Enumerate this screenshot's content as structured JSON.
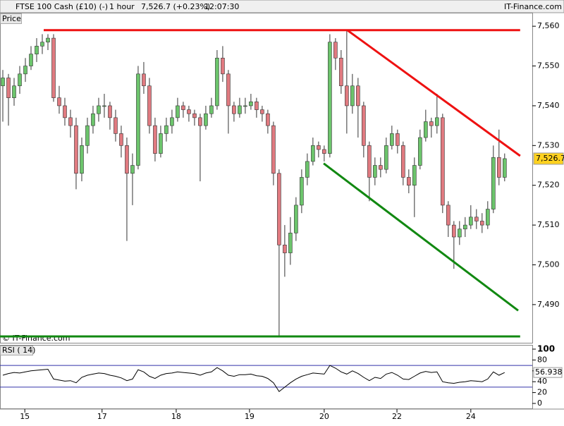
{
  "header": {
    "title": "FTSE 100 Cash (£10) (-)",
    "interval": "1 hour",
    "quote": "7,526.7 (+0.23%)",
    "time": "12:07:30",
    "brand": "IT-Finance.com"
  },
  "chart_data": [
    {
      "type": "candlestick",
      "panel_label": "Price",
      "watermark": "© IT-Finance.com",
      "xlim": [
        -0.5,
        93.9
      ],
      "ylim": [
        7480.4,
        7563.4
      ],
      "yticks": [
        {
          "value": 7490,
          "label": "7,490"
        },
        {
          "value": 7500,
          "label": "7,500"
        },
        {
          "value": 7510,
          "label": "7,510"
        },
        {
          "value": 7520,
          "label": "7,520"
        },
        {
          "value": 7530,
          "label": "7,530"
        },
        {
          "value": 7540,
          "label": "7,540"
        },
        {
          "value": 7550,
          "label": "7,550"
        },
        {
          "value": 7560,
          "label": "7,560"
        }
      ],
      "xticks": [
        {
          "value": 3.9,
          "label": "15"
        },
        {
          "value": 17.6,
          "label": "17"
        },
        {
          "value": 30.75,
          "label": "18"
        },
        {
          "value": 43.75,
          "label": "19"
        },
        {
          "value": 57,
          "label": "20"
        },
        {
          "value": 69.9,
          "label": "22"
        },
        {
          "value": 83,
          "label": "24"
        }
      ],
      "up_color": "#6cc46c",
      "down_color": "#e07a80",
      "wick_color": "#333333",
      "open": [
        7545,
        7547,
        7542,
        7545,
        7548,
        7550,
        7553,
        7555,
        7556,
        7557,
        7542,
        7540,
        7537,
        7535,
        7523,
        7530,
        7535,
        7538,
        7540,
        7540,
        7537,
        7533,
        7530,
        7523,
        7525,
        7548,
        7545,
        7535,
        7528,
        7533,
        7535,
        7537,
        7540,
        7539,
        7538,
        7537,
        7535,
        7538,
        7540,
        7552,
        7548,
        7540,
        7538,
        7540,
        7540,
        7541,
        7539,
        7538,
        7535,
        7523,
        7505,
        7503,
        7508,
        7515,
        7522,
        7526,
        7530,
        7529,
        7528,
        7556,
        7552,
        7545,
        7540,
        7545,
        7540,
        7530,
        7522,
        7525,
        7524,
        7530,
        7533,
        7530,
        7522,
        7520,
        7525,
        7532,
        7536,
        7535,
        7537,
        7515,
        7510,
        7507,
        7509,
        7510,
        7512,
        7511,
        7510,
        7514,
        7527,
        7522
      ],
      "high": [
        7549,
        7548,
        7547,
        7550,
        7552,
        7555,
        7557,
        7558,
        7558,
        7558,
        7545,
        7542,
        7539,
        7537,
        7532,
        7537,
        7540,
        7542,
        7543,
        7541,
        7539,
        7535,
        7532,
        7528,
        7550,
        7551,
        7547,
        7537,
        7535,
        7537,
        7539,
        7542,
        7541,
        7540,
        7539,
        7538,
        7540,
        7542,
        7554,
        7555,
        7549,
        7541,
        7542,
        7542,
        7543,
        7542,
        7540,
        7539,
        7536,
        7524,
        7510,
        7512,
        7517,
        7524,
        7528,
        7532,
        7531,
        7530,
        7558,
        7557,
        7554,
        7559,
        7548,
        7547,
        7541,
        7531,
        7527,
        7527,
        7532,
        7535,
        7534,
        7531,
        7524,
        7527,
        7534,
        7539,
        7537,
        7543,
        7538,
        7516,
        7511,
        7511,
        7512,
        7515,
        7514,
        7513,
        7516,
        7530,
        7534,
        7528
      ],
      "low": [
        7536,
        7535,
        7540,
        7543,
        7546,
        7549,
        7551,
        7553,
        7554,
        7541,
        7538,
        7535,
        7532,
        7519,
        7521,
        7528,
        7533,
        7536,
        7537,
        7534,
        7531,
        7527,
        7506,
        7515,
        7524,
        7543,
        7533,
        7526,
        7527,
        7531,
        7533,
        7536,
        7537,
        7536,
        7535,
        7521,
        7534,
        7537,
        7539,
        7546,
        7533,
        7536,
        7537,
        7538,
        7539,
        7537,
        7536,
        7533,
        7520,
        7482,
        7497,
        7500,
        7506,
        7513,
        7520,
        7525,
        7527,
        7526,
        7527,
        7549,
        7543,
        7533,
        7538,
        7532,
        7527,
        7516,
        7520,
        7522,
        7523,
        7529,
        7528,
        7520,
        7518,
        7512,
        7524,
        7531,
        7532,
        7533,
        7513,
        7507,
        7499,
        7505,
        7507,
        7509,
        7509,
        7508,
        7509,
        7513,
        7520,
        7521
      ],
      "close": [
        7547,
        7542,
        7545,
        7548,
        7550,
        7553,
        7555,
        7556,
        7557,
        7542,
        7540,
        7537,
        7535,
        7523,
        7530,
        7535,
        7538,
        7540,
        7540,
        7537,
        7533,
        7530,
        7523,
        7525,
        7548,
        7545,
        7535,
        7528,
        7533,
        7535,
        7537,
        7540,
        7539,
        7538,
        7537,
        7535,
        7538,
        7540,
        7552,
        7548,
        7540,
        7538,
        7540,
        7540,
        7541,
        7539,
        7538,
        7535,
        7523,
        7505,
        7503,
        7508,
        7515,
        7522,
        7526,
        7530,
        7529,
        7528,
        7556,
        7552,
        7545,
        7540,
        7545,
        7540,
        7530,
        7522,
        7525,
        7524,
        7530,
        7533,
        7530,
        7522,
        7520,
        7525,
        7532,
        7536,
        7535,
        7537,
        7515,
        7510,
        7507,
        7509,
        7510,
        7512,
        7511,
        7510,
        7514,
        7527,
        7522,
        7526.7
      ],
      "last_label": "7,526.7",
      "lines": [
        {
          "color": "#ee1111",
          "x": [
            7.25,
            91.75
          ],
          "y": [
            7559,
            7559
          ]
        },
        {
          "color": "#ee1111",
          "x": [
            61.1,
            91.75
          ],
          "y": [
            7559,
            7527.4
          ]
        },
        {
          "color": "#118811",
          "x": [
            56.9,
            91.4
          ],
          "y": [
            7525.5,
            7488.5
          ]
        },
        {
          "color": "#118811",
          "x": [
            -0.5,
            91.75
          ],
          "y": [
            7482,
            7482
          ]
        }
      ]
    },
    {
      "type": "line",
      "title": "RSI ( 14)",
      "ylim": [
        0,
        100
      ],
      "yticks": [
        0,
        20,
        40,
        60,
        80,
        100
      ],
      "levels": [
        70,
        30
      ],
      "level_color": "#3333aa",
      "color": "#000000",
      "values": [
        52,
        55,
        57,
        56,
        58,
        60,
        61,
        62,
        63,
        45,
        43,
        41,
        42,
        38,
        48,
        52,
        54,
        56,
        55,
        52,
        50,
        47,
        42,
        45,
        62,
        58,
        50,
        46,
        52,
        55,
        56,
        58,
        57,
        56,
        55,
        52,
        56,
        58,
        66,
        60,
        52,
        50,
        53,
        53,
        54,
        51,
        50,
        46,
        38,
        22,
        30,
        38,
        45,
        50,
        53,
        56,
        55,
        54,
        70,
        65,
        58,
        54,
        60,
        55,
        48,
        42,
        48,
        46,
        54,
        57,
        52,
        45,
        44,
        50,
        56,
        59,
        57,
        58,
        40,
        38,
        37,
        39,
        40,
        42,
        41,
        40,
        45,
        58,
        52,
        56.938
      ]
    }
  ]
}
